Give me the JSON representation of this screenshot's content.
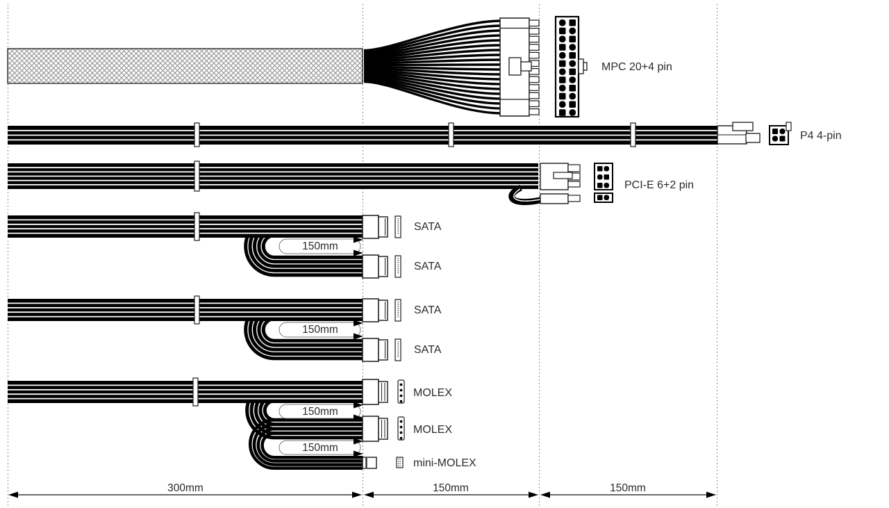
{
  "diagram": {
    "type": "PSU cable length and connector diagram",
    "colors": {
      "wire": "#000000",
      "background": "#ffffff",
      "label_text": "#2a2a2a"
    }
  },
  "cables": {
    "atx": {
      "connector_label": "MPC 20+4 pin"
    },
    "p4": {
      "connector_label": "P4 4-pin"
    },
    "pcie": {
      "connector_label": "PCI-E 6+2 pin"
    },
    "sata_chain_1": {
      "connector_labels": [
        "SATA",
        "SATA"
      ],
      "loop_labels": [
        "150mm"
      ]
    },
    "sata_chain_2": {
      "connector_labels": [
        "SATA",
        "SATA"
      ],
      "loop_labels": [
        "150mm"
      ]
    },
    "molex_chain": {
      "connector_labels": [
        "MOLEX",
        "MOLEX",
        "mini-MOLEX"
      ],
      "loop_labels": [
        "150mm",
        "150mm"
      ]
    }
  },
  "dimensions": {
    "segments": [
      {
        "label": "300mm"
      },
      {
        "label": "150mm"
      },
      {
        "label": "150mm"
      }
    ]
  }
}
